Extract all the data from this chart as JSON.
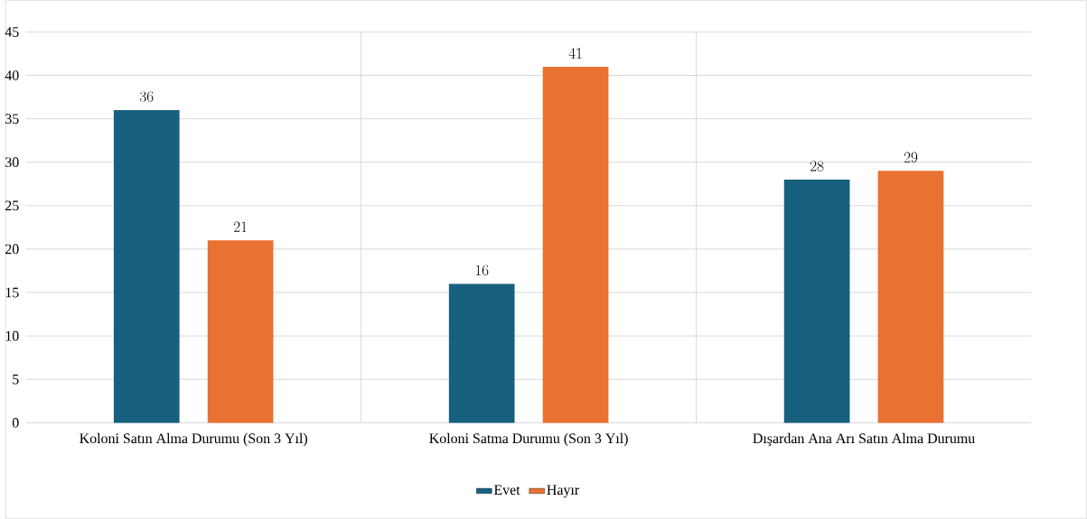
{
  "chart_data": {
    "type": "bar",
    "categories": [
      "Koloni Satın Alma Durumu (Son 3 Yıl)",
      "Koloni Satma Durumu (Son 3 Yıl)",
      "Dışardan Ana Arı Satın Alma Durumu"
    ],
    "series": [
      {
        "name": "Evet",
        "color": "#17607f",
        "values": [
          36,
          16,
          28
        ]
      },
      {
        "name": "Hayır",
        "color": "#e97132",
        "values": [
          21,
          41,
          29
        ]
      }
    ],
    "ylim": [
      0,
      45
    ],
    "yticks": [
      0,
      5,
      10,
      15,
      20,
      25,
      30,
      35,
      40,
      45
    ],
    "grid": true,
    "legend": "bottom",
    "data_labels": true
  }
}
